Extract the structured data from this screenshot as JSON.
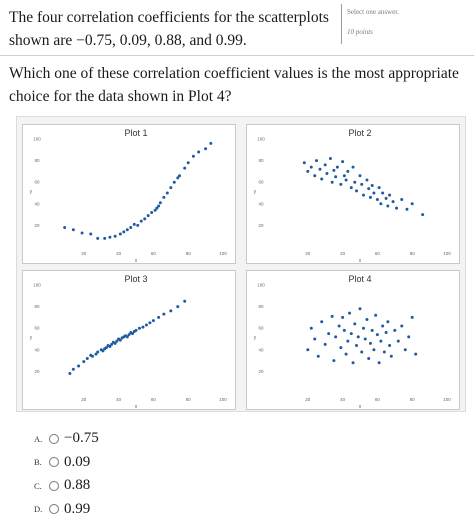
{
  "question": {
    "intro": "The four correlation coefficients for the scatterplots shown are −0.75, 0.09, 0.88, and 0.99.",
    "prompt": "Which one of these correlation coefficient values is the most appropriate choice for the data shown in Plot 4?",
    "instruction": "Select one answer.",
    "points": "10 points"
  },
  "options": [
    {
      "letter": "A.",
      "value": "−0.75"
    },
    {
      "letter": "B.",
      "value": "0.09"
    },
    {
      "letter": "C.",
      "value": "0.88"
    },
    {
      "letter": "D.",
      "value": "0.99"
    }
  ],
  "colors": {
    "marker": "#1f5b9e",
    "panel_bg": "#f3f3f3"
  },
  "chart_data": [
    {
      "type": "scatter",
      "title": "Plot 1",
      "xlabel": "x",
      "ylabel": "y",
      "xlim": [
        0,
        100
      ],
      "ylim": [
        0,
        100
      ],
      "grid": false,
      "x_ticks": [
        "20",
        "40",
        "60",
        "80",
        "100"
      ],
      "y_ticks": [
        "100",
        "80",
        "60",
        "40",
        "20"
      ],
      "x": [
        9,
        14,
        19,
        24,
        28,
        32,
        35,
        38,
        41,
        43,
        45,
        47,
        49,
        51,
        53,
        55,
        57,
        59,
        61,
        62,
        63,
        64,
        66,
        68,
        70,
        72,
        74,
        75,
        78,
        80,
        83,
        86,
        90,
        93
      ],
      "y": [
        18,
        16,
        13,
        12,
        8,
        8,
        9,
        10,
        12,
        14,
        16,
        18,
        21,
        20,
        24,
        26,
        29,
        32,
        34,
        36,
        38,
        41,
        46,
        50,
        55,
        60,
        64,
        66,
        73,
        78,
        84,
        88,
        91,
        96
      ]
    },
    {
      "type": "scatter",
      "title": "Plot 2",
      "xlabel": "x",
      "ylabel": "y",
      "xlim": [
        0,
        100
      ],
      "ylim": [
        0,
        100
      ],
      "grid": false,
      "x_ticks": [
        "20",
        "40",
        "60",
        "80",
        "100"
      ],
      "y_ticks": [
        "100",
        "80",
        "60",
        "40",
        "20"
      ],
      "x": [
        18,
        20,
        22,
        24,
        25,
        27,
        28,
        30,
        31,
        33,
        34,
        35,
        36,
        37,
        39,
        40,
        41,
        42,
        43,
        45,
        46,
        47,
        48,
        50,
        51,
        52,
        54,
        55,
        56,
        57,
        58,
        60,
        61,
        62,
        63,
        65,
        66,
        67,
        69,
        71,
        74,
        77,
        80,
        86
      ],
      "y": [
        78,
        70,
        74,
        66,
        80,
        72,
        63,
        76,
        68,
        82,
        60,
        71,
        65,
        74,
        58,
        79,
        66,
        62,
        70,
        55,
        74,
        60,
        52,
        66,
        58,
        48,
        62,
        54,
        46,
        57,
        50,
        44,
        55,
        40,
        50,
        45,
        38,
        48,
        42,
        36,
        44,
        35,
        40,
        30
      ]
    },
    {
      "type": "scatter",
      "title": "Plot 3",
      "xlabel": "x",
      "ylabel": "y",
      "xlim": [
        0,
        100
      ],
      "ylim": [
        0,
        100
      ],
      "grid": false,
      "x_ticks": [
        "20",
        "40",
        "60",
        "80",
        "100"
      ],
      "y_ticks": [
        "100",
        "80",
        "60",
        "40",
        "20"
      ],
      "x": [
        12,
        14,
        17,
        20,
        22,
        24,
        25,
        27,
        28,
        30,
        31,
        32,
        33,
        34,
        35,
        36,
        37,
        38,
        39,
        40,
        41,
        42,
        43,
        44,
        45,
        46,
        47,
        48,
        49,
        50,
        52,
        54,
        56,
        58,
        60,
        63,
        66,
        70,
        74,
        78
      ],
      "y": [
        18,
        22,
        25,
        29,
        32,
        35,
        34,
        36,
        38,
        40,
        39,
        41,
        42,
        44,
        43,
        45,
        47,
        46,
        48,
        50,
        49,
        51,
        52,
        53,
        52,
        54,
        56,
        55,
        57,
        58,
        60,
        61,
        63,
        65,
        67,
        70,
        73,
        76,
        80,
        85
      ]
    },
    {
      "type": "scatter",
      "title": "Plot 4",
      "xlabel": "x",
      "ylabel": "y",
      "xlim": [
        0,
        100
      ],
      "ylim": [
        0,
        100
      ],
      "grid": false,
      "x_ticks": [
        "20",
        "40",
        "60",
        "80",
        "100"
      ],
      "y_ticks": [
        "100",
        "80",
        "60",
        "40",
        "20"
      ],
      "x": [
        20,
        22,
        24,
        26,
        28,
        30,
        32,
        34,
        35,
        36,
        38,
        39,
        40,
        41,
        42,
        43,
        44,
        45,
        46,
        47,
        48,
        49,
        50,
        51,
        52,
        53,
        54,
        55,
        56,
        57,
        58,
        59,
        60,
        61,
        62,
        63,
        64,
        65,
        66,
        67,
        68,
        70,
        72,
        74,
        76,
        78,
        80,
        82
      ],
      "y": [
        40,
        60,
        50,
        34,
        66,
        45,
        55,
        71,
        30,
        52,
        62,
        42,
        70,
        58,
        36,
        48,
        74,
        55,
        28,
        64,
        44,
        52,
        78,
        38,
        60,
        50,
        68,
        32,
        46,
        58,
        40,
        72,
        54,
        28,
        48,
        62,
        38,
        56,
        66,
        44,
        34,
        58,
        48,
        62,
        40,
        52,
        70,
        36
      ]
    }
  ]
}
